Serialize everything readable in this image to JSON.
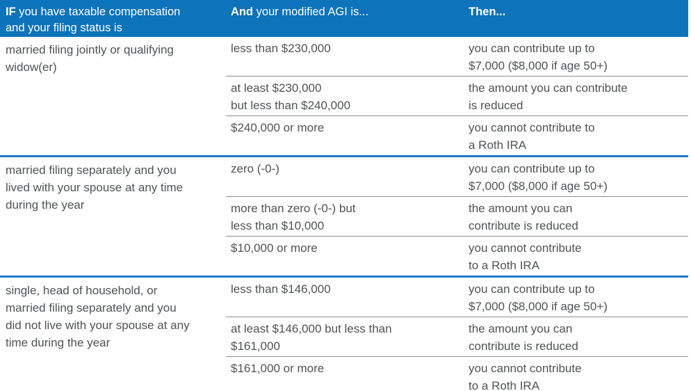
{
  "table": {
    "header": {
      "col1": {
        "bold": "IF",
        "rest": " you have taxable compensation\nand your filing status is"
      },
      "col2": {
        "bold": "And",
        "rest": " your modified AGI is..."
      },
      "col3": {
        "bold": "Then...",
        "rest": ""
      }
    },
    "groups": [
      {
        "status": "married filing jointly or qualifying\nwidow(er)",
        "rows": [
          {
            "agi": "less than $230,000",
            "then": "you can contribute up to\n$7,000 ($8,000 if age 50+)"
          },
          {
            "agi": "at least $230,000\nbut less than $240,000",
            "then": "the amount you can contribute\nis reduced"
          },
          {
            "agi": "$240,000 or more",
            "then": "you cannot contribute to\na Roth IRA"
          }
        ]
      },
      {
        "status": "married filing separately and you\nlived with your spouse at any time\nduring the year",
        "rows": [
          {
            "agi": "zero (-0-)",
            "then": "you can contribute up to\n$7,000 ($8,000 if age 50+)"
          },
          {
            "agi": "more than zero (-0-) but\nless than $10,000",
            "then": "the amount you can\ncontribute is reduced"
          },
          {
            "agi": "$10,000 or more",
            "then": "you cannot contribute\nto a Roth IRA"
          }
        ]
      },
      {
        "status": "single, head of household, or\nmarried filing separately and you\ndid not live with your spouse at any\ntime during the year",
        "rows": [
          {
            "agi": "less than $146,000",
            "then": "you can contribute up to\n$7,000 ($8,000 if age 50+)"
          },
          {
            "agi": "at least $146,000 but less than\n$161,000",
            "then": "the amount you can\ncontribute is reduced"
          },
          {
            "agi": "$161,000 or more",
            "then": "you cannot contribute\nto a Roth IRA"
          }
        ]
      }
    ],
    "colors": {
      "header_bg": "#0d73ba",
      "header_text": "#ffffff",
      "rule_blue": "#1e78c8",
      "rule_gray": "#8a8d8f",
      "body_text": "#4f5254"
    }
  }
}
